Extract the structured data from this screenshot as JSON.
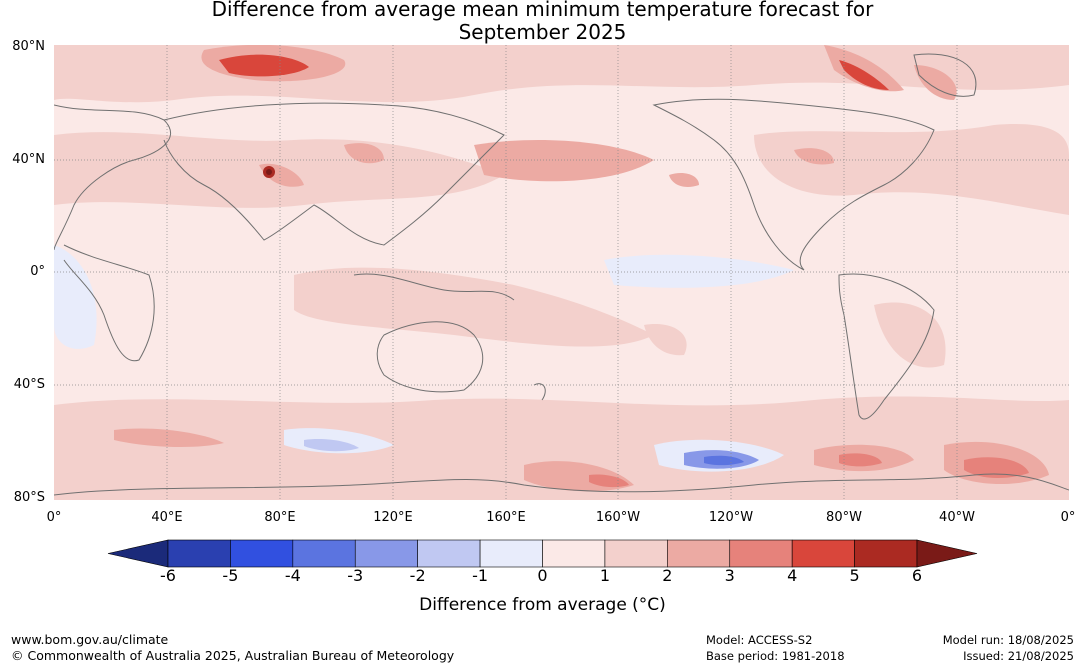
{
  "title_line1": "Difference from average mean minimum temperature forecast for",
  "title_line2": "September 2025",
  "lat_labels": [
    "80°N",
    "40°N",
    "0°",
    "40°S",
    "80°S"
  ],
  "lon_labels": [
    "0°",
    "40°E",
    "80°E",
    "120°E",
    "160°E",
    "160°W",
    "120°W",
    "80°W",
    "40°W",
    "0°"
  ],
  "colorbar": {
    "ticks": [
      "-6",
      "-5",
      "-4",
      "-3",
      "-2",
      "-1",
      "0",
      "1",
      "2",
      "3",
      "4",
      "5",
      "6"
    ],
    "colors": [
      "#1b2a7a",
      "#2a40b0",
      "#3150e0",
      "#5b74e0",
      "#8898e8",
      "#c0c8f2",
      "#e8ecfb",
      "#fbe9e7",
      "#f3d0cc",
      "#ecaaa3",
      "#e6827b",
      "#d9463b",
      "#ab2a22",
      "#7a1a17"
    ],
    "title": "Difference from average (°C)"
  },
  "footer": {
    "website": "www.bom.gov.au/climate",
    "copyright": "© Commonwealth of Australia 2025, Australian Bureau of Meteorology",
    "model": "Model: ACCESS-S2",
    "base_period": "Base period: 1981-2018",
    "model_run": "Model run: 18/08/2025",
    "issued": "Issued: 21/08/2025"
  }
}
